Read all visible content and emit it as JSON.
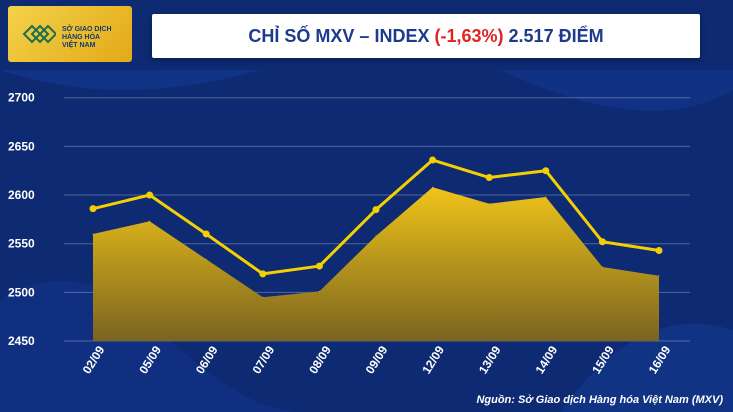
{
  "header": {
    "logo_lines": [
      "SỞ GIAO DỊCH",
      "HÀNG HÓA",
      "VIỆT NAM"
    ],
    "title_prefix": "CHỈ SỐ MXV – INDEX",
    "title_change": "(-1,63%)",
    "title_value": "2.517 ĐIỂM"
  },
  "source": "Nguồn: Sở Giao dịch Hàng hóa Việt Nam (MXV)",
  "colors": {
    "background": "#0d2a73",
    "line": "#f5d000",
    "area_top": "#f0c419",
    "area_bottom": "#7a6420",
    "title": "#1d3b8c",
    "negative": "#e02424"
  },
  "chart_data": {
    "type": "line",
    "categories": [
      "02/09",
      "05/09",
      "06/09",
      "07/09",
      "08/09",
      "09/09",
      "12/09",
      "13/09",
      "14/09",
      "15/09",
      "16/09"
    ],
    "series": [
      {
        "style": "line",
        "values": [
          2586,
          2600,
          2560,
          2519,
          2527,
          2585,
          2636,
          2618,
          2625,
          2552,
          2543
        ]
      },
      {
        "style": "area",
        "values": [
          2560,
          2573,
          2534,
          2495,
          2501,
          2558,
          2608,
          2591,
          2598,
          2526,
          2517
        ]
      }
    ],
    "y_ticks": [
      2450,
      2500,
      2550,
      2600,
      2650,
      2700
    ],
    "ylim": [
      2450,
      2710
    ],
    "grid": true
  }
}
